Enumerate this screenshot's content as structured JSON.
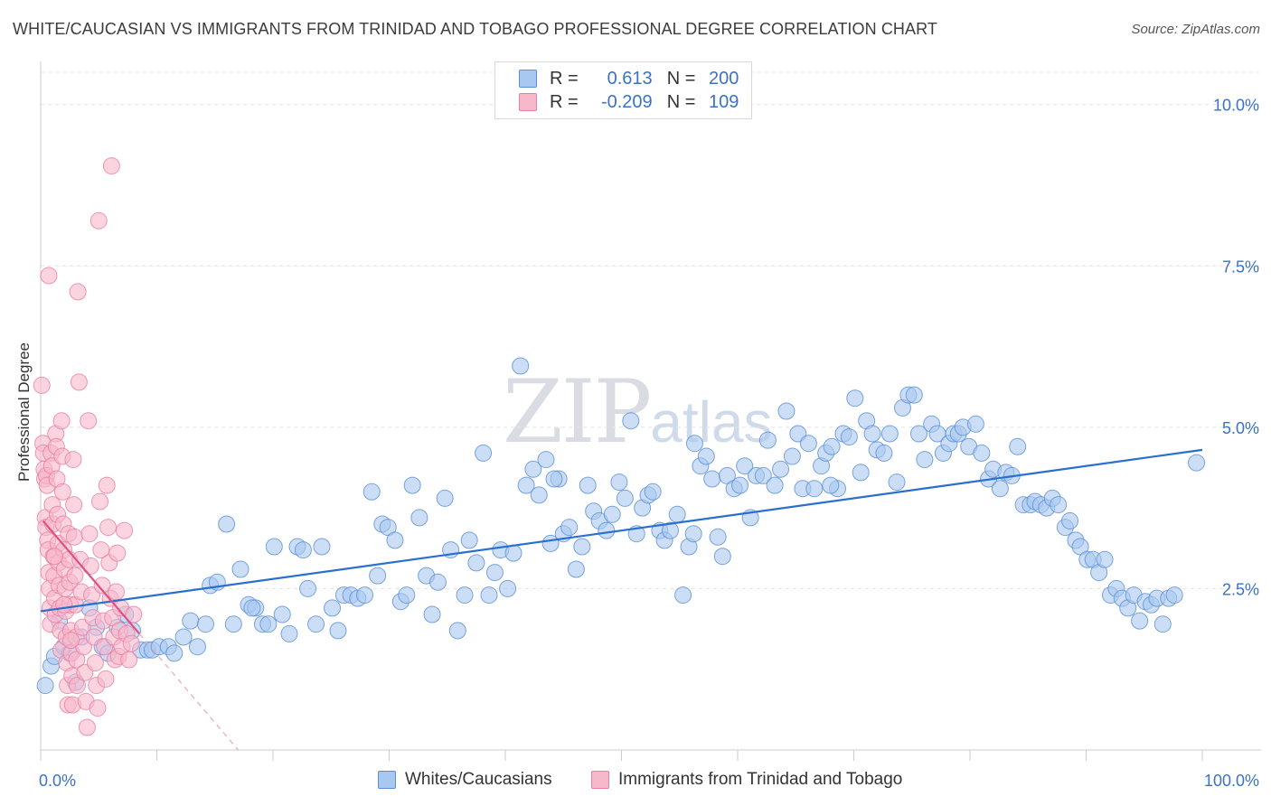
{
  "title": "WHITE/CAUCASIAN VS IMMIGRANTS FROM TRINIDAD AND TOBAGO PROFESSIONAL DEGREE CORRELATION CHART",
  "source": "Source: ZipAtlas.com",
  "watermark": {
    "zip": "ZIP",
    "atlas": "atlas"
  },
  "legend_top": {
    "rows": [
      {
        "r_label": "R =",
        "r_value": "0.613",
        "n_label": "N =",
        "n_value": "200"
      },
      {
        "r_label": "R =",
        "r_value": "-0.209",
        "n_label": "N =",
        "n_value": "109"
      }
    ]
  },
  "colors": {
    "blue_fill": "#a8c8f0",
    "blue_stroke": "#5a8fd8",
    "blue_line": "#2a6fd0",
    "pink_fill": "#f8b8cc",
    "pink_stroke": "#e87fa0",
    "pink_line": "#e05080",
    "axis_text": "#3a72c8",
    "grid": "#e4e4e4"
  },
  "chart_data": {
    "type": "scatter",
    "title": "WHITE/CAUCASIAN VS IMMIGRANTS FROM TRINIDAD AND TOBAGO PROFESSIONAL DEGREE CORRELATION CHART",
    "xlabel": "",
    "ylabel": "Professional Degree",
    "xlim": [
      0,
      100
    ],
    "ylim": [
      0,
      10.5
    ],
    "x_tick_labels": [
      "0.0%",
      "100.0%"
    ],
    "y_ticks": [
      2.5,
      5.0,
      7.5,
      10.0
    ],
    "y_tick_labels": [
      "2.5%",
      "5.0%",
      "7.5%",
      "10.0%"
    ],
    "grid": true,
    "legend": "bottom-center",
    "series": [
      {
        "name": "Whites/Caucasians",
        "R": 0.613,
        "N": 200,
        "trend": {
          "x": [
            0,
            100
          ],
          "y": [
            2.15,
            4.65
          ]
        },
        "points": [
          [
            0.4,
            1.0
          ],
          [
            0.9,
            1.3
          ],
          [
            1.2,
            1.45
          ],
          [
            1.6,
            2.0
          ],
          [
            2.0,
            1.6
          ],
          [
            2.5,
            1.5
          ],
          [
            3.0,
            1.05
          ],
          [
            3.5,
            1.75
          ],
          [
            4.2,
            2.2
          ],
          [
            4.8,
            1.9
          ],
          [
            5.3,
            1.6
          ],
          [
            5.8,
            1.5
          ],
          [
            6.6,
            1.9
          ],
          [
            7.3,
            2.1
          ],
          [
            7.9,
            1.85
          ],
          [
            8.6,
            1.55
          ],
          [
            9.2,
            1.55
          ],
          [
            9.6,
            1.55
          ],
          [
            10.2,
            1.6
          ],
          [
            11.0,
            1.6
          ],
          [
            11.5,
            1.5
          ],
          [
            12.3,
            1.75
          ],
          [
            12.9,
            2.0
          ],
          [
            13.5,
            1.6
          ],
          [
            14.2,
            1.95
          ],
          [
            14.6,
            2.55
          ],
          [
            15.2,
            2.6
          ],
          [
            16.0,
            3.5
          ],
          [
            16.6,
            1.95
          ],
          [
            17.2,
            2.8
          ],
          [
            17.9,
            2.25
          ],
          [
            18.5,
            2.2
          ],
          [
            19.1,
            1.95
          ],
          [
            19.6,
            1.95
          ],
          [
            20.1,
            3.15
          ],
          [
            20.8,
            2.1
          ],
          [
            21.4,
            1.8
          ],
          [
            22.1,
            3.15
          ],
          [
            22.6,
            3.1
          ],
          [
            23.0,
            2.5
          ],
          [
            23.7,
            1.95
          ],
          [
            24.2,
            3.15
          ],
          [
            25.1,
            2.2
          ],
          [
            25.6,
            1.85
          ],
          [
            26.1,
            2.4
          ],
          [
            26.7,
            2.4
          ],
          [
            27.3,
            2.35
          ],
          [
            27.9,
            2.4
          ],
          [
            28.5,
            4.0
          ],
          [
            29.0,
            2.7
          ],
          [
            29.4,
            3.5
          ],
          [
            29.9,
            3.45
          ],
          [
            30.5,
            3.25
          ],
          [
            31.0,
            2.3
          ],
          [
            31.5,
            2.4
          ],
          [
            32.0,
            4.1
          ],
          [
            32.6,
            3.6
          ],
          [
            33.2,
            2.7
          ],
          [
            33.7,
            2.1
          ],
          [
            34.2,
            2.6
          ],
          [
            34.8,
            3.9
          ],
          [
            35.3,
            3.1
          ],
          [
            35.9,
            1.85
          ],
          [
            36.5,
            2.4
          ],
          [
            36.9,
            3.25
          ],
          [
            37.5,
            2.9
          ],
          [
            38.1,
            4.6
          ],
          [
            38.6,
            2.4
          ],
          [
            39.1,
            2.75
          ],
          [
            39.6,
            3.1
          ],
          [
            40.2,
            2.5
          ],
          [
            40.7,
            3.05
          ],
          [
            41.3,
            5.95
          ],
          [
            41.8,
            4.1
          ],
          [
            42.4,
            4.35
          ],
          [
            42.9,
            3.95
          ],
          [
            43.5,
            4.5
          ],
          [
            43.9,
            3.2
          ],
          [
            44.6,
            4.2
          ],
          [
            45.0,
            3.35
          ],
          [
            45.5,
            3.45
          ],
          [
            46.1,
            2.8
          ],
          [
            46.6,
            3.15
          ],
          [
            47.1,
            4.1
          ],
          [
            47.6,
            3.7
          ],
          [
            48.1,
            3.55
          ],
          [
            48.7,
            3.4
          ],
          [
            49.2,
            3.65
          ],
          [
            49.8,
            4.15
          ],
          [
            50.3,
            3.9
          ],
          [
            50.8,
            5.1
          ],
          [
            51.3,
            3.35
          ],
          [
            51.8,
            3.75
          ],
          [
            52.3,
            3.95
          ],
          [
            52.7,
            4.0
          ],
          [
            53.3,
            3.4
          ],
          [
            53.7,
            3.25
          ],
          [
            54.2,
            3.4
          ],
          [
            54.8,
            3.65
          ],
          [
            55.3,
            2.4
          ],
          [
            55.8,
            3.15
          ],
          [
            56.3,
            4.75
          ],
          [
            56.8,
            4.4
          ],
          [
            57.3,
            4.55
          ],
          [
            57.8,
            4.2
          ],
          [
            58.3,
            3.3
          ],
          [
            58.7,
            3.0
          ],
          [
            59.1,
            4.25
          ],
          [
            59.7,
            4.05
          ],
          [
            60.2,
            4.1
          ],
          [
            60.6,
            4.4
          ],
          [
            61.1,
            3.6
          ],
          [
            61.6,
            4.25
          ],
          [
            62.2,
            4.25
          ],
          [
            62.6,
            4.8
          ],
          [
            63.2,
            4.1
          ],
          [
            63.7,
            4.35
          ],
          [
            64.2,
            5.25
          ],
          [
            64.7,
            4.55
          ],
          [
            65.2,
            4.9
          ],
          [
            65.6,
            4.05
          ],
          [
            66.1,
            4.75
          ],
          [
            66.6,
            4.05
          ],
          [
            67.2,
            4.4
          ],
          [
            67.6,
            4.6
          ],
          [
            68.1,
            4.7
          ],
          [
            68.6,
            4.05
          ],
          [
            69.1,
            4.9
          ],
          [
            69.6,
            4.85
          ],
          [
            70.1,
            5.45
          ],
          [
            70.6,
            4.3
          ],
          [
            71.1,
            5.1
          ],
          [
            71.6,
            4.9
          ],
          [
            72.0,
            4.65
          ],
          [
            72.6,
            4.6
          ],
          [
            73.1,
            4.9
          ],
          [
            73.7,
            4.15
          ],
          [
            74.2,
            5.3
          ],
          [
            74.7,
            5.5
          ],
          [
            75.2,
            5.5
          ],
          [
            75.6,
            4.9
          ],
          [
            76.1,
            4.5
          ],
          [
            76.7,
            5.05
          ],
          [
            77.2,
            4.9
          ],
          [
            77.7,
            4.6
          ],
          [
            78.2,
            4.75
          ],
          [
            78.6,
            4.9
          ],
          [
            79.0,
            4.9
          ],
          [
            79.4,
            5.0
          ],
          [
            79.9,
            4.7
          ],
          [
            80.5,
            5.05
          ],
          [
            81.0,
            4.6
          ],
          [
            81.6,
            4.2
          ],
          [
            82.0,
            4.35
          ],
          [
            82.6,
            4.05
          ],
          [
            83.1,
            4.3
          ],
          [
            83.6,
            4.25
          ],
          [
            84.1,
            4.7
          ],
          [
            84.6,
            3.8
          ],
          [
            85.2,
            3.8
          ],
          [
            85.6,
            3.85
          ],
          [
            86.1,
            3.8
          ],
          [
            86.6,
            3.75
          ],
          [
            87.1,
            3.9
          ],
          [
            87.6,
            3.8
          ],
          [
            88.2,
            3.45
          ],
          [
            88.6,
            3.55
          ],
          [
            89.1,
            3.25
          ],
          [
            89.5,
            3.15
          ],
          [
            90.1,
            2.95
          ],
          [
            90.6,
            2.95
          ],
          [
            91.1,
            2.75
          ],
          [
            91.6,
            2.95
          ],
          [
            92.1,
            2.4
          ],
          [
            92.6,
            2.5
          ],
          [
            93.1,
            2.35
          ],
          [
            93.6,
            2.2
          ],
          [
            94.1,
            2.4
          ],
          [
            94.6,
            2.0
          ],
          [
            95.1,
            2.3
          ],
          [
            95.6,
            2.25
          ],
          [
            96.1,
            2.35
          ],
          [
            96.6,
            1.95
          ],
          [
            97.1,
            2.35
          ],
          [
            97.6,
            2.4
          ],
          [
            99.5,
            4.45
          ],
          [
            18.2,
            2.2
          ],
          [
            44.2,
            4.2
          ],
          [
            56.2,
            3.35
          ],
          [
            68.0,
            4.1
          ]
        ]
      },
      {
        "name": "Immigrants from Trinidad and Tobago",
        "R": -0.209,
        "N": 109,
        "trend": {
          "x": [
            0.2,
            8.5
          ],
          "y": [
            3.55,
            1.8
          ]
        },
        "trend_dashed": {
          "x": [
            8.5,
            17
          ],
          "y": [
            1.8,
            0.0
          ]
        },
        "points": [
          [
            0.1,
            5.65
          ],
          [
            0.2,
            4.75
          ],
          [
            0.25,
            4.6
          ],
          [
            0.3,
            4.35
          ],
          [
            0.35,
            4.2
          ],
          [
            0.4,
            3.6
          ],
          [
            0.45,
            3.45
          ],
          [
            0.5,
            4.25
          ],
          [
            0.55,
            4.1
          ],
          [
            0.6,
            3.25
          ],
          [
            0.65,
            3.1
          ],
          [
            0.7,
            2.75
          ],
          [
            0.75,
            2.5
          ],
          [
            0.8,
            2.2
          ],
          [
            0.85,
            1.95
          ],
          [
            0.9,
            4.6
          ],
          [
            0.95,
            4.4
          ],
          [
            1.0,
            3.8
          ],
          [
            1.05,
            3.5
          ],
          [
            1.1,
            3.0
          ],
          [
            1.15,
            2.7
          ],
          [
            1.2,
            2.35
          ],
          [
            1.25,
            2.1
          ],
          [
            1.3,
            4.9
          ],
          [
            1.35,
            4.7
          ],
          [
            1.4,
            4.2
          ],
          [
            1.45,
            3.65
          ],
          [
            1.5,
            3.2
          ],
          [
            1.55,
            2.9
          ],
          [
            1.6,
            2.55
          ],
          [
            1.65,
            2.2
          ],
          [
            1.7,
            1.85
          ],
          [
            1.75,
            1.55
          ],
          [
            1.8,
            5.1
          ],
          [
            1.85,
            4.55
          ],
          [
            1.9,
            4.0
          ],
          [
            1.95,
            3.5
          ],
          [
            2.0,
            3.1
          ],
          [
            2.05,
            2.8
          ],
          [
            2.1,
            2.5
          ],
          [
            2.15,
            2.15
          ],
          [
            2.2,
            1.75
          ],
          [
            2.25,
            1.35
          ],
          [
            2.3,
            1.0
          ],
          [
            2.35,
            0.7
          ],
          [
            2.4,
            3.35
          ],
          [
            2.45,
            2.95
          ],
          [
            2.5,
            2.6
          ],
          [
            2.55,
            2.25
          ],
          [
            2.6,
            1.85
          ],
          [
            2.65,
            1.5
          ],
          [
            2.7,
            1.15
          ],
          [
            2.75,
            0.7
          ],
          [
            2.8,
            4.5
          ],
          [
            2.85,
            3.8
          ],
          [
            2.9,
            3.3
          ],
          [
            2.95,
            2.7
          ],
          [
            3.0,
            2.25
          ],
          [
            3.05,
            1.75
          ],
          [
            3.1,
            1.4
          ],
          [
            3.15,
            1.0
          ],
          [
            3.2,
            7.1
          ],
          [
            3.3,
            5.7
          ],
          [
            3.4,
            2.95
          ],
          [
            3.5,
            2.45
          ],
          [
            3.6,
            1.9
          ],
          [
            3.7,
            1.6
          ],
          [
            3.8,
            1.2
          ],
          [
            3.9,
            0.75
          ],
          [
            4.0,
            0.35
          ],
          [
            4.1,
            5.1
          ],
          [
            4.2,
            3.35
          ],
          [
            4.3,
            2.85
          ],
          [
            4.4,
            2.4
          ],
          [
            4.5,
            2.05
          ],
          [
            4.6,
            1.75
          ],
          [
            4.7,
            1.35
          ],
          [
            4.8,
            1.0
          ],
          [
            4.9,
            0.65
          ],
          [
            5.0,
            8.2
          ],
          [
            5.1,
            3.85
          ],
          [
            5.2,
            3.1
          ],
          [
            5.3,
            2.55
          ],
          [
            5.4,
            2.0
          ],
          [
            5.5,
            1.6
          ],
          [
            5.6,
            1.1
          ],
          [
            5.7,
            4.1
          ],
          [
            5.8,
            3.45
          ],
          [
            5.9,
            2.9
          ],
          [
            6.0,
            2.35
          ],
          [
            6.1,
            9.05
          ],
          [
            6.2,
            2.05
          ],
          [
            6.3,
            1.75
          ],
          [
            6.4,
            1.4
          ],
          [
            6.5,
            2.45
          ],
          [
            6.6,
            3.05
          ],
          [
            6.7,
            1.45
          ],
          [
            6.8,
            1.85
          ],
          [
            6.9,
            2.2
          ],
          [
            7.0,
            1.6
          ],
          [
            7.2,
            3.4
          ],
          [
            7.4,
            1.8
          ],
          [
            7.6,
            1.4
          ],
          [
            7.8,
            1.65
          ],
          [
            8.0,
            2.1
          ],
          [
            0.7,
            7.35
          ],
          [
            1.2,
            3.0
          ],
          [
            2.0,
            2.25
          ],
          [
            2.6,
            1.7
          ]
        ]
      }
    ]
  }
}
